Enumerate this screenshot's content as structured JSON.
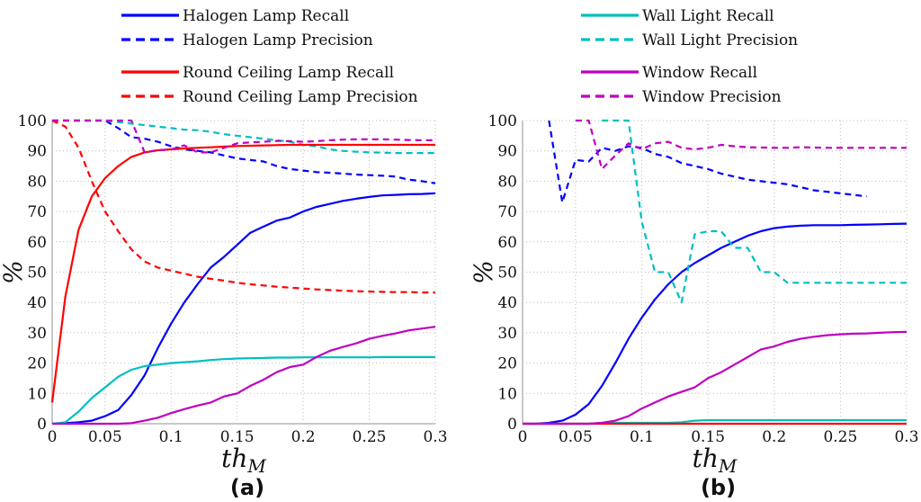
{
  "legend": [
    {
      "label": "Halogen Lamp Recall",
      "color": "#0000ff",
      "dash": false
    },
    {
      "label": "Halogen Lamp Precision",
      "color": "#0000ff",
      "dash": true
    },
    {
      "label": "Wall Light Recall",
      "color": "#00bfbf",
      "dash": false
    },
    {
      "label": "Wall Light Precision",
      "color": "#00bfbf",
      "dash": true
    },
    {
      "label": "Round Ceiling Lamp Recall",
      "color": "#ff0000",
      "dash": false
    },
    {
      "label": "Round Ceiling Lamp Precision",
      "color": "#ff0000",
      "dash": true
    },
    {
      "label": "Window Recall",
      "color": "#bf00bf",
      "dash": false
    },
    {
      "label": "Window Precision",
      "color": "#bf00bf",
      "dash": true
    }
  ],
  "chart_data": [
    {
      "type": "line",
      "panel_label": "(a)",
      "xlabel": "th_M",
      "ylabel": "%",
      "xlim": [
        0.01,
        0.3
      ],
      "ylim": [
        0,
        100
      ],
      "grid": true,
      "xticks": [
        {
          "v": 0.01,
          "label": "0"
        },
        {
          "v": 0.05,
          "label": "0.05"
        },
        {
          "v": 0.1,
          "label": "0.1"
        },
        {
          "v": 0.15,
          "label": "0.15"
        },
        {
          "v": 0.2,
          "label": "0.2"
        },
        {
          "v": 0.25,
          "label": "0.25"
        },
        {
          "v": 0.3,
          "label": "0.3"
        }
      ],
      "yticks": [
        0,
        10,
        20,
        30,
        40,
        50,
        60,
        70,
        80,
        90,
        100
      ],
      "x": [
        0.01,
        0.02,
        0.03,
        0.04,
        0.05,
        0.06,
        0.07,
        0.08,
        0.09,
        0.1,
        0.11,
        0.12,
        0.13,
        0.14,
        0.15,
        0.16,
        0.17,
        0.18,
        0.19,
        0.2,
        0.21,
        0.22,
        0.23,
        0.24,
        0.25,
        0.26,
        0.27,
        0.28,
        0.29,
        0.3
      ],
      "series": [
        {
          "name": "Halogen Lamp Recall",
          "values": [
            0,
            0.2,
            0.5,
            1,
            2.5,
            4.5,
            9.5,
            16,
            25,
            33,
            40,
            46,
            51.5,
            55,
            59,
            63,
            65,
            67,
            68,
            70,
            71.5,
            72.5,
            73.5,
            74.2,
            74.8,
            75.3,
            75.5,
            75.7,
            75.8,
            76
          ]
        },
        {
          "name": "Halogen Lamp Precision",
          "values": [
            100,
            100,
            100,
            100,
            100,
            97.5,
            94.5,
            94,
            93,
            91.5,
            90.5,
            90,
            89.5,
            88.5,
            87.5,
            87,
            86.5,
            85,
            84,
            83.5,
            83,
            82.8,
            82.5,
            82.2,
            82,
            81.8,
            81.5,
            80.5,
            80,
            79.3
          ]
        },
        {
          "name": "Wall Light Recall",
          "values": [
            0,
            0.5,
            4,
            8.5,
            12,
            15.5,
            17.8,
            19,
            19.5,
            20,
            20.3,
            20.6,
            21,
            21.3,
            21.5,
            21.6,
            21.7,
            21.8,
            21.8,
            21.9,
            21.9,
            21.9,
            21.9,
            21.9,
            21.9,
            22,
            22,
            22,
            22,
            22
          ]
        },
        {
          "name": "Wall Light Precision",
          "values": [
            100,
            100,
            100,
            100,
            100,
            99.5,
            99,
            98.5,
            98,
            97.5,
            97,
            96.8,
            96.3,
            95.5,
            95,
            94.5,
            94,
            93.5,
            93,
            92,
            91.5,
            90.5,
            90,
            89.7,
            89.5,
            89.4,
            89.3,
            89.3,
            89.3,
            89.3
          ]
        },
        {
          "name": "Round Ceiling Lamp Recall",
          "values": [
            7,
            42,
            64,
            75,
            81,
            85,
            88,
            89.5,
            90.2,
            90.5,
            90.8,
            91,
            91.2,
            91.4,
            91.6,
            91.7,
            91.8,
            91.9,
            92,
            92,
            92,
            92,
            92,
            92,
            92,
            92,
            92,
            92,
            92,
            92
          ]
        },
        {
          "name": "Round Ceiling Lamp Precision",
          "values": [
            100,
            98,
            91,
            80,
            70,
            63.5,
            57.5,
            53.5,
            51.5,
            50.5,
            49.5,
            48.5,
            47.8,
            47.2,
            46.5,
            46,
            45.6,
            45.2,
            44.9,
            44.6,
            44.3,
            44.1,
            43.9,
            43.7,
            43.6,
            43.5,
            43.4,
            43.4,
            43.3,
            43.3
          ]
        },
        {
          "name": "Window Recall",
          "values": [
            0,
            0,
            0,
            0,
            0,
            0,
            0.2,
            1,
            2,
            3.5,
            4.8,
            6,
            7,
            9,
            10,
            12.5,
            14.5,
            17,
            18.7,
            19.5,
            22,
            24,
            25.3,
            26.5,
            28,
            29,
            29.8,
            30.8,
            31.4,
            32
          ]
        },
        {
          "name": "Window Precision",
          "values": [
            100,
            100,
            100,
            100,
            100,
            100,
            100,
            89.5,
            90.2,
            90.5,
            91.8,
            89.5,
            89.5,
            91,
            92.5,
            92.8,
            93,
            93.3,
            93.2,
            93,
            93.2,
            93.5,
            93.7,
            93.8,
            93.8,
            93.8,
            93.7,
            93.6,
            93.5,
            93.5
          ]
        }
      ]
    },
    {
      "type": "line",
      "panel_label": "(b)",
      "xlabel": "th_M",
      "ylabel": "%",
      "xlim": [
        0.01,
        0.3
      ],
      "ylim": [
        0,
        100
      ],
      "grid": true,
      "xticks": [
        {
          "v": 0.01,
          "label": "0"
        },
        {
          "v": 0.05,
          "label": "0.05"
        },
        {
          "v": 0.1,
          "label": "0.1"
        },
        {
          "v": 0.15,
          "label": "0.15"
        },
        {
          "v": 0.2,
          "label": "0.2"
        },
        {
          "v": 0.25,
          "label": "0.25"
        },
        {
          "v": 0.3,
          "label": "0.3"
        }
      ],
      "yticks": [
        0,
        10,
        20,
        30,
        40,
        50,
        60,
        70,
        80,
        90,
        100
      ],
      "x": [
        0.01,
        0.02,
        0.03,
        0.04,
        0.05,
        0.06,
        0.07,
        0.08,
        0.09,
        0.1,
        0.11,
        0.12,
        0.13,
        0.14,
        0.15,
        0.16,
        0.17,
        0.18,
        0.19,
        0.2,
        0.21,
        0.22,
        0.23,
        0.24,
        0.25,
        0.26,
        0.27,
        0.28,
        0.29,
        0.3
      ],
      "series": [
        {
          "name": "Halogen Lamp Recall",
          "values": [
            0,
            0,
            0.3,
            1,
            3,
            6.5,
            12.5,
            20,
            28,
            35,
            41,
            46,
            50,
            53,
            55.5,
            58,
            60,
            62,
            63.5,
            64.5,
            65,
            65.3,
            65.5,
            65.5,
            65.5,
            65.6,
            65.7,
            65.8,
            65.9,
            66
          ]
        },
        {
          "name": "Halogen Lamp Precision",
          "values": [
            null,
            null,
            100,
            73,
            87,
            86.5,
            91,
            90,
            91.5,
            91,
            89,
            88,
            86,
            85,
            84,
            82.5,
            81.5,
            80.5,
            80,
            79.5,
            79,
            78,
            77,
            76.5,
            76,
            75.5,
            75,
            null,
            null,
            null
          ]
        },
        {
          "name": "Wall Light Recall",
          "values": [
            0,
            0,
            0,
            0,
            0,
            0,
            0.3,
            0.3,
            0.3,
            0.3,
            0.3,
            0.3,
            0.5,
            1,
            1.2,
            1.2,
            1.2,
            1.2,
            1.2,
            1.2,
            1.2,
            1.2,
            1.2,
            1.2,
            1.2,
            1.2,
            1.2,
            1.2,
            1.2,
            1.2
          ]
        },
        {
          "name": "Wall Light Precision",
          "values": [
            null,
            null,
            null,
            null,
            null,
            null,
            100,
            100,
            100,
            66.7,
            50,
            50,
            40,
            62.5,
            63.5,
            63.5,
            58,
            58,
            50,
            50,
            46.5,
            46.5,
            46.5,
            46.5,
            46.5,
            46.5,
            46.5,
            46.5,
            46.5,
            46.5
          ]
        },
        {
          "name": "Round Ceiling Lamp Recall",
          "values": [
            0,
            0,
            0,
            0,
            0,
            0,
            0,
            0,
            0,
            0,
            0,
            0,
            0,
            0,
            0,
            0,
            0,
            0,
            0,
            0,
            0,
            0,
            0,
            0,
            0,
            0,
            0,
            0,
            0,
            0
          ]
        },
        {
          "name": "Round Ceiling Lamp Precision",
          "values": []
        },
        {
          "name": "Window Recall",
          "values": [
            0,
            0,
            0,
            0,
            0,
            0,
            0.3,
            1,
            2.5,
            5,
            7,
            9,
            10.5,
            12,
            15,
            17,
            19.5,
            22,
            24.5,
            25.5,
            27,
            28,
            28.7,
            29.2,
            29.5,
            29.7,
            29.8,
            30,
            30.2,
            30.3
          ]
        },
        {
          "name": "Window Precision",
          "values": [
            null,
            null,
            null,
            null,
            100,
            100,
            84,
            88.5,
            92.5,
            90.5,
            92.5,
            93,
            91,
            90.5,
            91,
            92,
            91.5,
            91.2,
            91.1,
            91,
            91,
            91.2,
            91.1,
            91,
            91,
            91,
            91,
            91,
            91,
            91
          ]
        }
      ]
    }
  ]
}
